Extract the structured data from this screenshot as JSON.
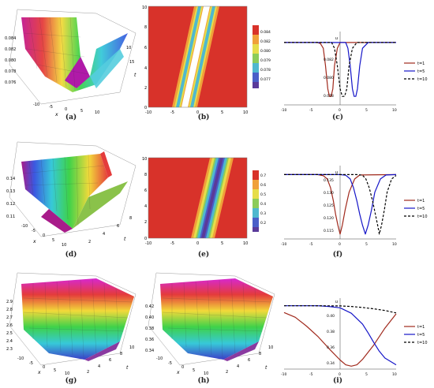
{
  "captions": [
    "(a)",
    "(b)",
    "(c)",
    "(d)",
    "(e)",
    "(f)",
    "(g)",
    "(h)",
    "(i)"
  ],
  "axis_letters": {
    "x": "x",
    "y": "y",
    "t": "t",
    "u": "u"
  },
  "colors": {
    "red_field": "#d8322a",
    "white_core": "#ffffff",
    "line_t1": "#a0291c",
    "line_t5": "#1515c8",
    "line_t10": "#000000"
  },
  "row1": {
    "surface3d": {
      "z_ticks": [
        "0.084",
        "0.082",
        "0.080",
        "0.078",
        "0.076"
      ],
      "x_ticks": [
        "-10",
        "-5",
        "0",
        "5",
        "10"
      ],
      "y_ticks": [
        "10",
        "15"
      ]
    },
    "density": {
      "x_ticks": [
        "-10",
        "-5",
        "0",
        "5",
        "10"
      ],
      "y_ticks": [
        "10",
        "8",
        "6",
        "4",
        "2",
        "0"
      ],
      "legend_ticks": [
        "0.084",
        "0.082",
        "0.080",
        "0.079",
        "0.078",
        "0.077"
      ]
    },
    "chart_data": {
      "type": "line",
      "x_ticks": [
        "-10",
        "-5",
        "0",
        "5",
        "10"
      ],
      "y_ticks": [
        "0.082",
        "0.080",
        "0.078"
      ],
      "xlim": [
        -10,
        10
      ],
      "series": [
        {
          "name": "t=1",
          "style": "solid",
          "x": [
            -10,
            -4,
            -3.5,
            -3,
            -2.6,
            -2.2,
            -1.9,
            -1.6,
            -1.3,
            -1,
            -0.5,
            0,
            10
          ],
          "y": [
            0.085,
            0.085,
            0.0848,
            0.084,
            0.081,
            0.077,
            0.0757,
            0.0757,
            0.077,
            0.081,
            0.084,
            0.085,
            0.085
          ]
        },
        {
          "name": "t=5",
          "style": "solid",
          "x": [
            -10,
            1,
            1.4,
            1.8,
            2.2,
            2.5,
            2.8,
            3.1,
            3.5,
            4,
            5,
            10
          ],
          "y": [
            0.085,
            0.085,
            0.084,
            0.081,
            0.077,
            0.0757,
            0.0757,
            0.077,
            0.081,
            0.084,
            0.085,
            0.085
          ]
        },
        {
          "name": "t=10",
          "style": "dashed",
          "x": [
            -10,
            -1.5,
            -1,
            -0.5,
            0,
            0.4,
            0.8,
            1.2,
            1.6,
            2.2,
            3,
            10
          ],
          "y": [
            0.085,
            0.085,
            0.084,
            0.081,
            0.077,
            0.0757,
            0.0757,
            0.077,
            0.081,
            0.084,
            0.085,
            0.085
          ]
        }
      ]
    }
  },
  "row2": {
    "surface3d": {
      "z_ticks": [
        "0.14",
        "0.13",
        "0.12",
        "0.11"
      ],
      "x_ticks": [
        "-10",
        "-5",
        "0",
        "5",
        "10"
      ],
      "y_ticks": [
        "2",
        "4",
        "6",
        "8"
      ]
    },
    "density": {
      "x_ticks": [
        "-10",
        "-5",
        "0",
        "5",
        "10"
      ],
      "y_ticks": [
        "10",
        "8",
        "6",
        "4",
        "2",
        "0"
      ],
      "legend_ticks": [
        "0.7",
        "0.6",
        "0.5",
        "0.4",
        "0.3",
        "0.2"
      ]
    },
    "chart_data": {
      "type": "line",
      "x_ticks": [
        "-10",
        "-5",
        "0",
        "5",
        "10"
      ],
      "y_ticks": [
        "0.135",
        "0.130",
        "0.125",
        "0.120",
        "0.115"
      ],
      "xlim": [
        -10,
        10
      ],
      "series": [
        {
          "name": "t=1",
          "style": "solid",
          "x": [
            -10,
            -4,
            -3,
            -2.3,
            -1.7,
            -1.2,
            -0.8,
            -0.4,
            0,
            0.4,
            0.9,
            1.6,
            2.6,
            3.5,
            10
          ],
          "y": [
            0.14,
            0.14,
            0.1395,
            0.138,
            0.134,
            0.128,
            0.122,
            0.117,
            0.113,
            0.117,
            0.124,
            0.132,
            0.138,
            0.1398,
            0.14
          ]
        },
        {
          "name": "t=5",
          "style": "solid",
          "x": [
            -10,
            0,
            1,
            1.8,
            2.4,
            3,
            3.5,
            4,
            4.5,
            5,
            5.6,
            6.2,
            7.2,
            8.2,
            10
          ],
          "y": [
            0.14,
            0.14,
            0.1397,
            0.138,
            0.134,
            0.128,
            0.122,
            0.117,
            0.113,
            0.117,
            0.124,
            0.132,
            0.138,
            0.1398,
            0.14
          ]
        },
        {
          "name": "t=10",
          "style": "dashed",
          "x": [
            -10,
            3,
            4,
            4.6,
            5.2,
            5.8,
            6.3,
            6.7,
            7,
            7.4,
            7.9,
            8.4,
            9.2,
            10
          ],
          "y": [
            0.14,
            0.14,
            0.1397,
            0.138,
            0.134,
            0.128,
            0.122,
            0.117,
            0.113,
            0.117,
            0.124,
            0.132,
            0.138,
            0.1396
          ]
        }
      ]
    }
  },
  "row3": {
    "surface3d_g": {
      "z_ticks": [
        "2.9",
        "2.8",
        "2.7",
        "2.6",
        "2.5",
        "2.4",
        "2.3"
      ],
      "x_ticks": [
        "-10",
        "-5",
        "0",
        "5",
        "10"
      ],
      "y_ticks": [
        "2",
        "4",
        "6",
        "8",
        "10"
      ]
    },
    "surface3d_h": {
      "z_ticks": [
        "0.42",
        "0.40",
        "0.38",
        "0.36",
        "0.34"
      ],
      "x_ticks": [
        "-10",
        "-5",
        "0",
        "5",
        "10"
      ],
      "y_ticks": [
        "2",
        "4",
        "6",
        "8",
        "10"
      ]
    },
    "chart_data": {
      "type": "line",
      "x_ticks": [
        "-10",
        "-5",
        "0",
        "5",
        "10"
      ],
      "y_ticks": [
        "0.40",
        "0.38",
        "0.36",
        "0.34"
      ],
      "xlim": [
        -10,
        10
      ],
      "series": [
        {
          "name": "t=1",
          "style": "solid",
          "x": [
            -10,
            -8,
            -6,
            -4,
            -2,
            0,
            1,
            2,
            3,
            4,
            6,
            8,
            10
          ],
          "y": [
            0.415,
            0.408,
            0.395,
            0.38,
            0.362,
            0.345,
            0.338,
            0.336,
            0.338,
            0.346,
            0.367,
            0.392,
            0.413
          ]
        },
        {
          "name": "t=5",
          "style": "solid",
          "x": [
            -10,
            -4,
            -2,
            0,
            2,
            4,
            5,
            6,
            7,
            8,
            10
          ],
          "y": [
            0.425,
            0.425,
            0.424,
            0.422,
            0.414,
            0.398,
            0.385,
            0.371,
            0.358,
            0.348,
            0.338
          ]
        },
        {
          "name": "t=10",
          "style": "dashed",
          "x": [
            -10,
            -5,
            0,
            2,
            4,
            6,
            8,
            10
          ],
          "y": [
            0.425,
            0.425,
            0.4248,
            0.424,
            0.4225,
            0.4205,
            0.418,
            0.4145
          ]
        }
      ]
    }
  }
}
